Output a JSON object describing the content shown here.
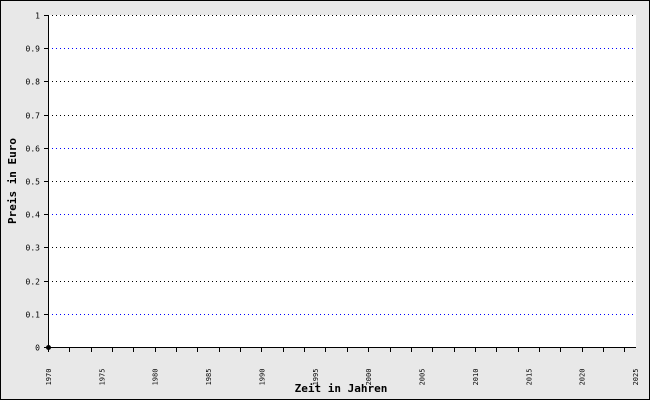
{
  "chart_data": {
    "type": "line",
    "title": "",
    "xlabel": "Zeit in Jahren",
    "ylabel": "Preis in Euro",
    "xlim": [
      1970,
      2025
    ],
    "ylim": [
      0,
      1
    ],
    "x_tick_labels": [
      "1970",
      "1975",
      "1980",
      "1985",
      "1990",
      "1995",
      "2000",
      "2005",
      "2010",
      "2015",
      "2020",
      "2025"
    ],
    "x_tick_values": [
      1970,
      1975,
      1980,
      1985,
      1990,
      1995,
      2000,
      2005,
      2010,
      2015,
      2020,
      2025
    ],
    "x_minor_tick_step": 2,
    "y_tick_labels": [
      "0",
      "0.1",
      "0.2",
      "0.3",
      "0.4",
      "0.5",
      "0.6",
      "0.7",
      "0.8",
      "0.9",
      "1"
    ],
    "y_tick_values": [
      0,
      0.1,
      0.2,
      0.3,
      0.4,
      0.5,
      0.6,
      0.7,
      0.8,
      0.9,
      1
    ],
    "grid": true,
    "grid_colors": [
      "#000000",
      "#0000ff",
      "#000000",
      "#000000",
      "#0000ff",
      "#000000",
      "#0000ff",
      "#000000",
      "#000000",
      "#0000ff",
      "#000000"
    ],
    "series": [
      {
        "x": [
          1970
        ],
        "y": [
          0
        ],
        "color": "#000000"
      }
    ],
    "colors": {
      "background": "#e8e8e8",
      "plot_background": "#ffffff",
      "axis": "#000000"
    }
  }
}
